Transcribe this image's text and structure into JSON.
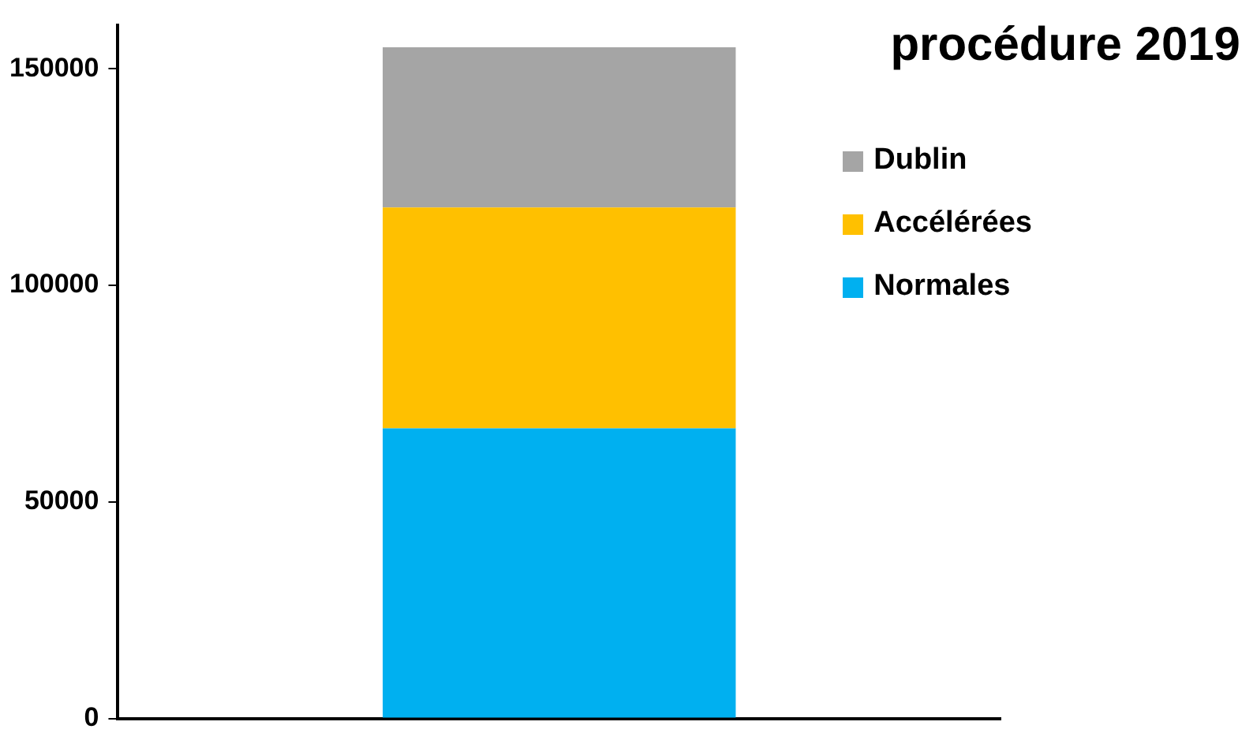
{
  "chart_data": {
    "type": "bar",
    "title": "procédure 2019",
    "categories": [
      null
    ],
    "stacked": true,
    "series": [
      {
        "name": "Normales",
        "color": "#00b0f0",
        "values": [
          67000
        ]
      },
      {
        "name": "Accélérées",
        "color": "#ffc000",
        "values": [
          51000
        ]
      },
      {
        "name": "Dublin",
        "color": "#a5a5a5",
        "values": [
          37000
        ]
      }
    ],
    "ylim": [
      0,
      160000
    ],
    "yticks": [
      0,
      50000,
      100000,
      150000
    ],
    "grid": false,
    "legend": "top right"
  }
}
